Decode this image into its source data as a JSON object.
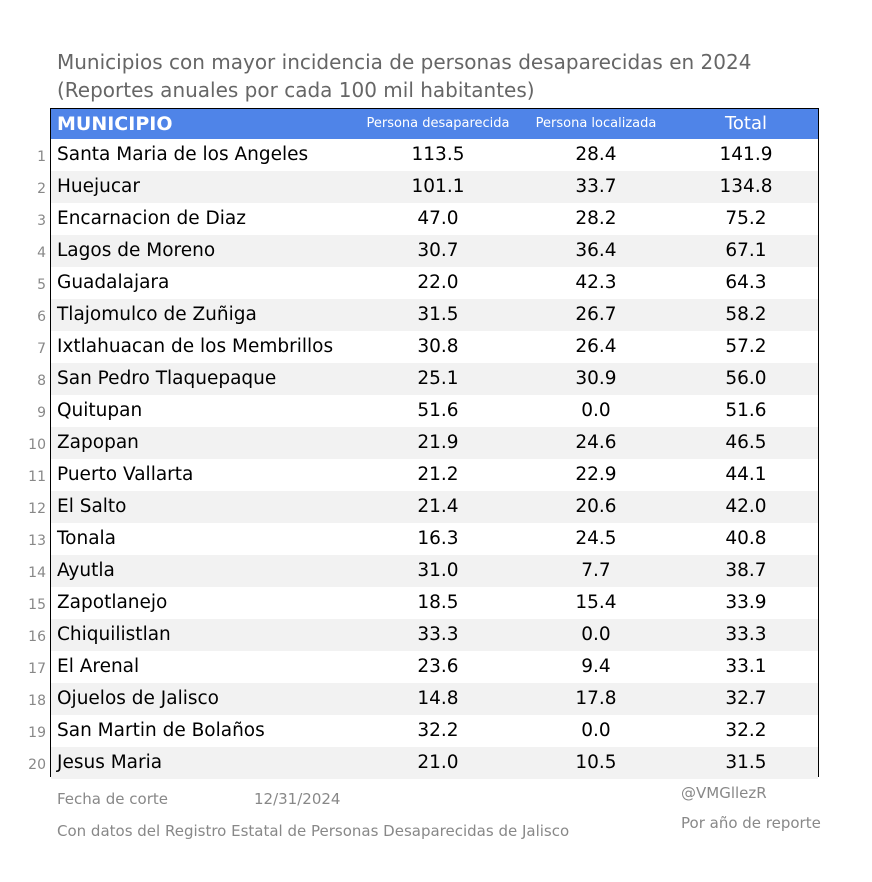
{
  "title": {
    "line1": "Municipios con mayor incidencia de personas desaparecidas en 2024",
    "line2": "(Reportes anuales por cada 100 mil habitantes)"
  },
  "colors": {
    "header_bg": "#4f84e8",
    "row_alt": "#f2f2f2",
    "title": "#666666"
  },
  "chart_data": {
    "type": "table",
    "columns": [
      "MUNICIPIO",
      "Persona desaparecida",
      "Persona localizada",
      "Total"
    ],
    "rows": [
      {
        "rank": "1",
        "municipio": "Santa Maria de los Angeles",
        "desaparecida": "113.5",
        "localizada": "28.4",
        "total": "141.9"
      },
      {
        "rank": "2",
        "municipio": "Huejucar",
        "desaparecida": "101.1",
        "localizada": "33.7",
        "total": "134.8"
      },
      {
        "rank": "3",
        "municipio": "Encarnacion de Diaz",
        "desaparecida": "47.0",
        "localizada": "28.2",
        "total": "75.2"
      },
      {
        "rank": "4",
        "municipio": "Lagos de Moreno",
        "desaparecida": "30.7",
        "localizada": "36.4",
        "total": "67.1"
      },
      {
        "rank": "5",
        "municipio": "Guadalajara",
        "desaparecida": "22.0",
        "localizada": "42.3",
        "total": "64.3"
      },
      {
        "rank": "6",
        "municipio": "Tlajomulco de Zuñiga",
        "desaparecida": "31.5",
        "localizada": "26.7",
        "total": "58.2"
      },
      {
        "rank": "7",
        "municipio": "Ixtlahuacan de los Membrillos",
        "desaparecida": "30.8",
        "localizada": "26.4",
        "total": "57.2"
      },
      {
        "rank": "8",
        "municipio": "San Pedro Tlaquepaque",
        "desaparecida": "25.1",
        "localizada": "30.9",
        "total": "56.0"
      },
      {
        "rank": "9",
        "municipio": "Quitupan",
        "desaparecida": "51.6",
        "localizada": "0.0",
        "total": "51.6"
      },
      {
        "rank": "10",
        "municipio": "Zapopan",
        "desaparecida": "21.9",
        "localizada": "24.6",
        "total": "46.5"
      },
      {
        "rank": "11",
        "municipio": "Puerto Vallarta",
        "desaparecida": "21.2",
        "localizada": "22.9",
        "total": "44.1"
      },
      {
        "rank": "12",
        "municipio": "El Salto",
        "desaparecida": "21.4",
        "localizada": "20.6",
        "total": "42.0"
      },
      {
        "rank": "13",
        "municipio": "Tonala",
        "desaparecida": "16.3",
        "localizada": "24.5",
        "total": "40.8"
      },
      {
        "rank": "14",
        "municipio": "Ayutla",
        "desaparecida": "31.0",
        "localizada": "7.7",
        "total": "38.7"
      },
      {
        "rank": "15",
        "municipio": "Zapotlanejo",
        "desaparecida": "18.5",
        "localizada": "15.4",
        "total": "33.9"
      },
      {
        "rank": "16",
        "municipio": "Chiquilistlan",
        "desaparecida": "33.3",
        "localizada": "0.0",
        "total": "33.3"
      },
      {
        "rank": "17",
        "municipio": "El Arenal",
        "desaparecida": "23.6",
        "localizada": "9.4",
        "total": "33.1"
      },
      {
        "rank": "18",
        "municipio": "Ojuelos de Jalisco",
        "desaparecida": "14.8",
        "localizada": "17.8",
        "total": "32.7"
      },
      {
        "rank": "19",
        "municipio": "San Martin de Bolaños",
        "desaparecida": "32.2",
        "localizada": "0.0",
        "total": "32.2"
      },
      {
        "rank": "20",
        "municipio": "Jesus Maria",
        "desaparecida": "21.0",
        "localizada": "10.5",
        "total": "31.5"
      }
    ]
  },
  "footer": {
    "cutoff_label": "Fecha de corte",
    "cutoff_date": "12/31/2024",
    "handle": "@VMGllezR",
    "source": "Con datos del Registro Estatal de Personas Desaparecidas de Jalisco",
    "note": "Por año de reporte"
  }
}
